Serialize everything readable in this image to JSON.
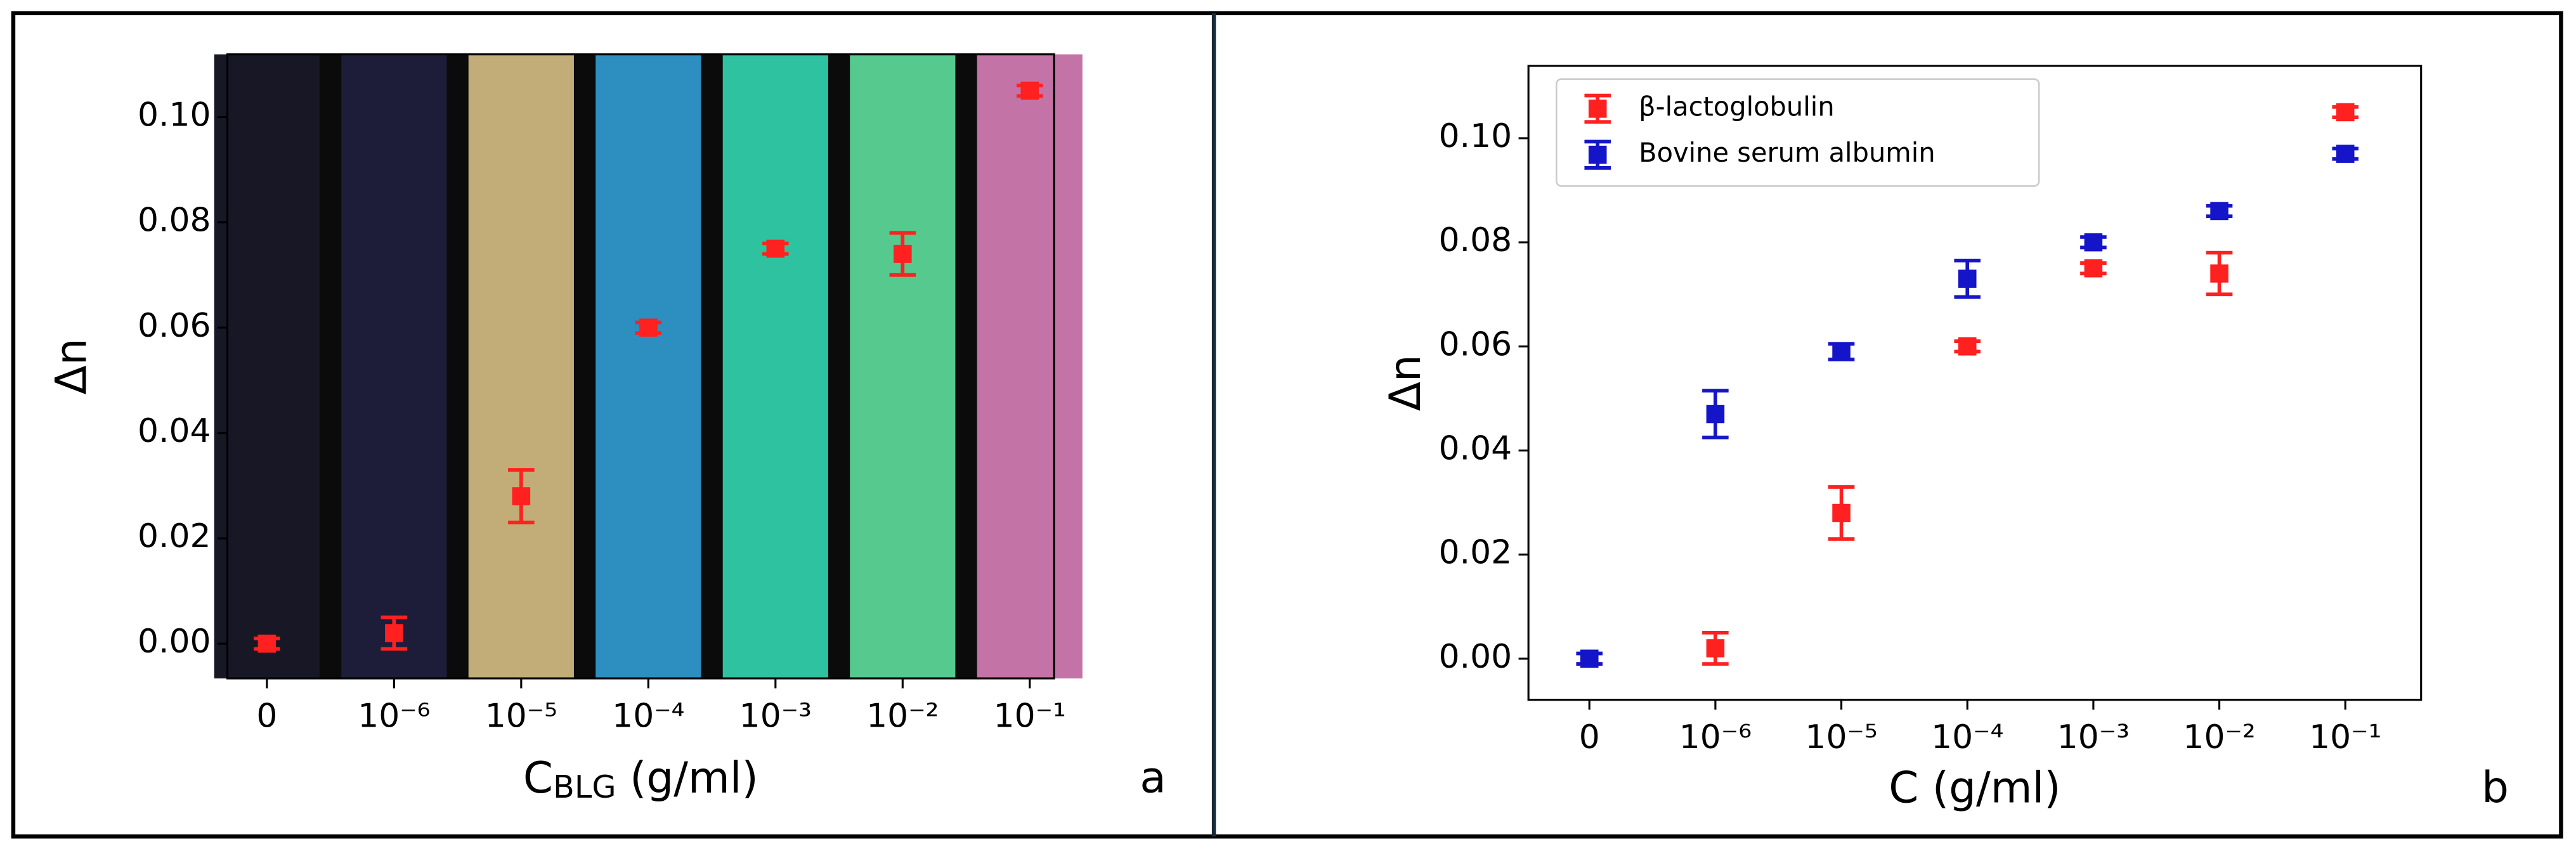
{
  "chart_data": [
    {
      "type": "errorbar",
      "panel_label": "a",
      "ylabel": "Δn",
      "xlabel": [
        "C",
        "BLG",
        " (g/ml)"
      ],
      "categories": [
        "0",
        "10⁻⁶",
        "10⁻⁵",
        "10⁻⁴",
        "10⁻³",
        "10⁻²",
        "10⁻¹"
      ],
      "background_colors": [
        "#171726",
        "#1d1d3a",
        "#c2ad78",
        "#2d8fbf",
        "#2fc2a0",
        "#55c98e",
        "#c473a6"
      ],
      "ylim": [
        -0.0066,
        0.1119
      ],
      "yticks": [
        {
          "value": 0,
          "label": "0.00"
        },
        {
          "value": 0.02,
          "label": "0.02"
        },
        {
          "value": 0.04,
          "label": "0.04"
        },
        {
          "value": 0.06,
          "label": "0.06"
        },
        {
          "value": 0.08,
          "label": "0.08"
        },
        {
          "value": 0.1,
          "label": "0.10"
        }
      ],
      "series": [
        {
          "color": "#ff2020",
          "values": [
            0,
            0.002,
            0.028,
            0.06,
            0.075,
            0.074,
            0.105
          ],
          "errors": [
            0.001,
            0.003,
            0.005,
            0.001,
            0.001,
            0.004,
            0.001
          ]
        }
      ]
    },
    {
      "type": "errorbar",
      "panel_label": "b",
      "ylabel": "Δn",
      "xlabel": [
        "C",
        "",
        " (g/ml)"
      ],
      "categories": [
        "0",
        "10⁻⁶",
        "10⁻⁵",
        "10⁻⁴",
        "10⁻³",
        "10⁻²",
        "10⁻¹"
      ],
      "ylim": [
        -0.0079,
        0.1139
      ],
      "yticks": [
        {
          "value": 0,
          "label": "0.00"
        },
        {
          "value": 0.02,
          "label": "0.02"
        },
        {
          "value": 0.04,
          "label": "0.04"
        },
        {
          "value": 0.06,
          "label": "0.06"
        },
        {
          "value": 0.08,
          "label": "0.08"
        },
        {
          "value": 0.1,
          "label": "0.10"
        }
      ],
      "legend": "upper left",
      "series": [
        {
          "name": "β-lactoglobulin",
          "color": "#ff2020",
          "values": [
            0,
            0.002,
            0.028,
            0.06,
            0.075,
            0.074,
            0.105
          ],
          "errors": [
            0.001,
            0.003,
            0.005,
            0.001,
            0.001,
            0.004,
            0.001
          ]
        },
        {
          "name": "Bovine serum albumin",
          "color": "#1414c8",
          "values": [
            0,
            0.047,
            0.059,
            0.073,
            0.08,
            0.086,
            0.097
          ],
          "errors": [
            0.001,
            0.0045,
            0.0015,
            0.0035,
            0.001,
            0.001,
            0.001
          ]
        }
      ]
    }
  ]
}
